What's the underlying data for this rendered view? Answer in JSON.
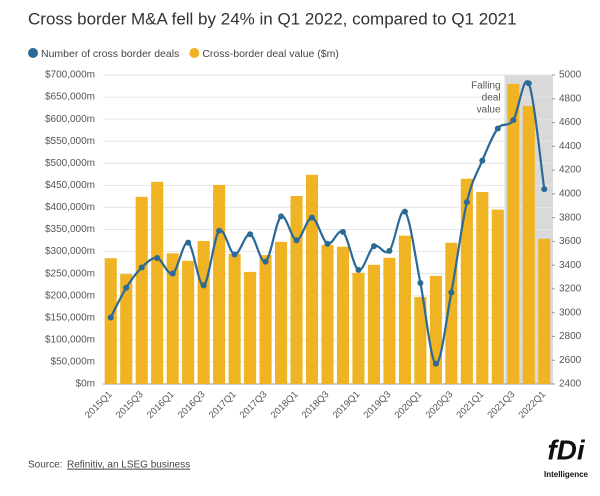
{
  "chart_data": {
    "type": "combo",
    "title": "Cross border M&A fell by 24% in Q1 2022, compared to Q1 2021",
    "categories": [
      "2015Q1",
      null,
      "2015Q3",
      null,
      "2016Q1",
      null,
      "2016Q3",
      null,
      "2017Q1",
      null,
      "2017Q3",
      null,
      "2018Q1",
      null,
      "2018Q3",
      null,
      "2019Q1",
      null,
      "2019Q3",
      null,
      "2020Q1",
      null,
      "2020Q3",
      null,
      "2021Q1",
      null,
      "2021Q3",
      null,
      "2022Q1"
    ],
    "series": [
      {
        "name": "Number of cross border deals",
        "type": "line",
        "axis": "y2",
        "color": "#2b6a97",
        "values": [
          2960,
          3210,
          3380,
          3460,
          3330,
          3590,
          3230,
          3690,
          3490,
          3660,
          3430,
          3810,
          3610,
          3800,
          3580,
          3680,
          3360,
          3560,
          3520,
          3850,
          3250,
          2570,
          3170,
          3930,
          4280,
          4550,
          4620,
          4930,
          4040
        ]
      },
      {
        "name": "Cross-border deal value ($m)",
        "type": "bar",
        "color": "#f0b323",
        "values": [
          285000,
          249000,
          424000,
          458000,
          296000,
          279000,
          324000,
          451000,
          295000,
          254000,
          292000,
          322000,
          426000,
          474000,
          315000,
          311000,
          252000,
          270000,
          286000,
          336000,
          197000,
          245000,
          320000,
          465000,
          435000,
          395000,
          680000,
          630000,
          329000
        ]
      }
    ],
    "ylim": [
      0,
      700000
    ],
    "yticks": [
      {
        "value": 0,
        "label": "$0m"
      },
      {
        "value": 50000,
        "label": "$50,000m"
      },
      {
        "value": 100000,
        "label": "$100,000m"
      },
      {
        "value": 150000,
        "label": "$150,000m"
      },
      {
        "value": 200000,
        "label": "$200,000m"
      },
      {
        "value": 250000,
        "label": "$250,000m"
      },
      {
        "value": 300000,
        "label": "$300,000m"
      },
      {
        "value": 350000,
        "label": "$350,000m"
      },
      {
        "value": 400000,
        "label": "$400,000m"
      },
      {
        "value": 450000,
        "label": "$450,000m"
      },
      {
        "value": 500000,
        "label": "$500,000m"
      },
      {
        "value": 550000,
        "label": "$550,000m"
      },
      {
        "value": 600000,
        "label": "$600,000m"
      },
      {
        "value": 650000,
        "label": "$650,000m"
      },
      {
        "value": 700000,
        "label": "$700,000m"
      }
    ],
    "y2lim": [
      2400,
      5000
    ],
    "y2ticks": [
      2400,
      2600,
      2800,
      3000,
      3200,
      3400,
      3600,
      3800,
      4000,
      4200,
      4400,
      4600,
      4800,
      5000
    ],
    "grid": true,
    "shaded_range": [
      "2021Q3",
      "2022Q1"
    ],
    "annotation": [
      "Falling",
      "deal",
      "value"
    ],
    "source_label": "Source:",
    "source": "Refinitiv, an LSEG business",
    "logo": "fDi",
    "logo_sub": "Intelligence"
  }
}
